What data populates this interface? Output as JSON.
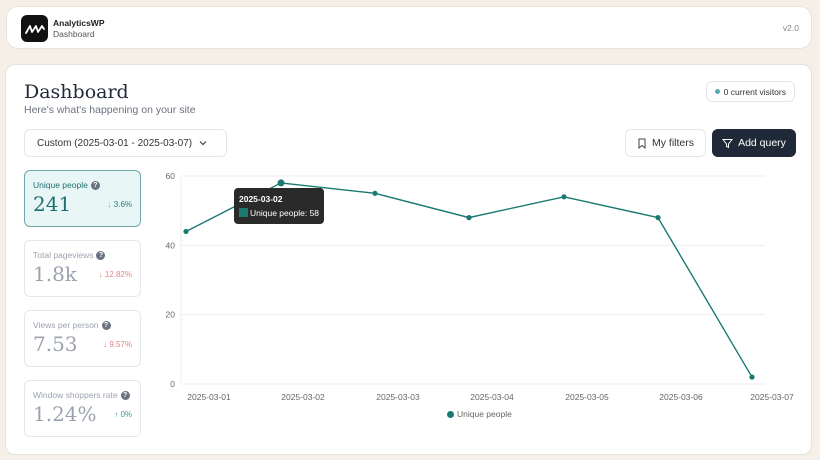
{
  "topbar": {
    "app_name": "AnalyticsWP",
    "app_subtitle": "Dashboard",
    "version": "v2.0",
    "logo_icon": "analytics-wave-logo"
  },
  "header": {
    "title": "Dashboard",
    "subtitle": "Here's what's happening on your site",
    "visitors_badge": "0 current visitors"
  },
  "toolbar": {
    "date_range": "Custom (2025-03-01 - 2025-03-07)",
    "my_filters_label": "My filters",
    "add_query_label": "Add query"
  },
  "metrics": [
    {
      "label": "Unique people",
      "value": "241",
      "delta": "3.6%",
      "direction": "down",
      "active": true
    },
    {
      "label": "Total pageviews",
      "value": "1.8k",
      "delta": "12.82%",
      "direction": "down",
      "active": false
    },
    {
      "label": "Views per person",
      "value": "7.53",
      "delta": "9.57%",
      "direction": "down",
      "active": false
    },
    {
      "label": "Window shoppers rate",
      "value": "1.24%",
      "delta": "0%",
      "direction": "up",
      "active": false
    }
  ],
  "tooltip": {
    "title": "2025-03-02",
    "line": "Unique people: 58"
  },
  "colors": {
    "accent": "#1a7a71",
    "active_card_bg": "#e8f6f6",
    "dark_button": "#1f2937",
    "down": "#e08585",
    "up": "#3d9a94",
    "page_bg": "#f6efe8"
  },
  "chart_data": {
    "type": "line",
    "title": "",
    "xlabel": "",
    "ylabel": "",
    "categories": [
      "2025-03-01",
      "2025-03-02",
      "2025-03-03",
      "2025-03-04",
      "2025-03-05",
      "2025-03-06",
      "2025-03-07"
    ],
    "series": [
      {
        "name": "Unique people",
        "values": [
          44,
          58,
          55,
          48,
          54,
          48,
          2
        ],
        "color": "#1a7a71"
      }
    ],
    "yticks": [
      "0",
      "20",
      "40",
      "60"
    ],
    "ylim": [
      0,
      60
    ],
    "grid": true,
    "legend_position": "bottom"
  }
}
